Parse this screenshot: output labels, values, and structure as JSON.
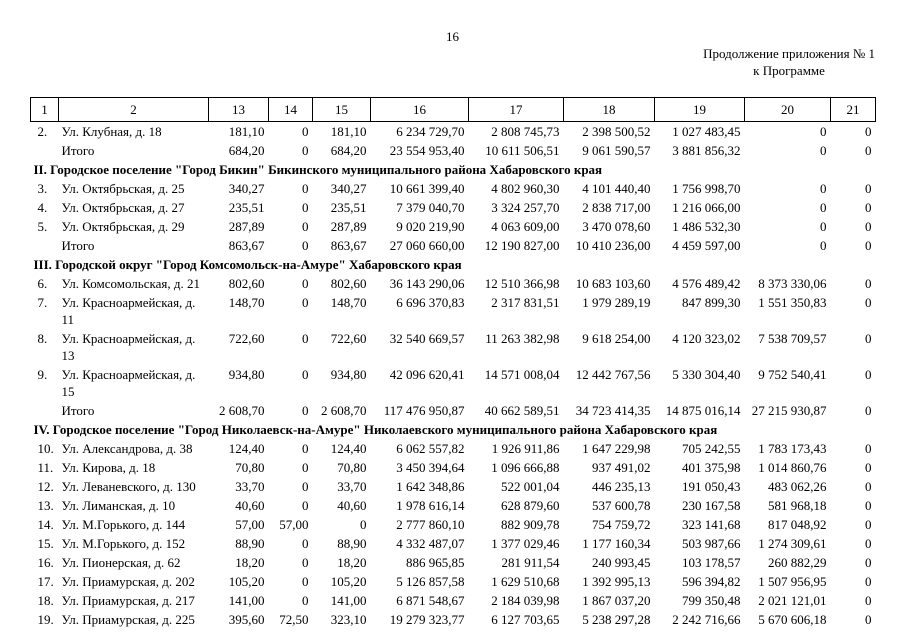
{
  "page": {
    "number": "16",
    "continuation_line1": "Продолжение приложения № 1",
    "continuation_line2": "к Программе"
  },
  "table": {
    "header": [
      "1",
      "2",
      "13",
      "14",
      "15",
      "16",
      "17",
      "18",
      "19",
      "20",
      "21"
    ],
    "rows": [
      {
        "type": "item",
        "num": "2.",
        "address": "Ул. Клубная, д. 18",
        "values": [
          "181,10",
          "0",
          "181,10",
          "6 234 729,70",
          "2 808 745,73",
          "2 398 500,52",
          "1 027 483,45",
          "0",
          "0"
        ]
      },
      {
        "type": "total",
        "label": "Итого",
        "values": [
          "684,20",
          "0",
          "684,20",
          "23 554 953,40",
          "10 611 506,51",
          "9 061 590,57",
          "3 881 856,32",
          "0",
          "0"
        ]
      },
      {
        "type": "section",
        "text": "II. Городское поселение \"Город Бикин\" Бикинского муниципального района Хабаровского края"
      },
      {
        "type": "item",
        "num": "3.",
        "address": "Ул. Октябрьская, д. 25",
        "values": [
          "340,27",
          "0",
          "340,27",
          "10 661 399,40",
          "4 802 960,30",
          "4 101 440,40",
          "1 756 998,70",
          "0",
          "0"
        ]
      },
      {
        "type": "item",
        "num": "4.",
        "address": "Ул. Октябрьская, д. 27",
        "values": [
          "235,51",
          "0",
          "235,51",
          "7 379 040,70",
          "3 324 257,70",
          "2 838 717,00",
          "1 216 066,00",
          "0",
          "0"
        ]
      },
      {
        "type": "item",
        "num": "5.",
        "address": "Ул. Октябрьская, д. 29",
        "values": [
          "287,89",
          "0",
          "287,89",
          "9 020 219,90",
          "4 063 609,00",
          "3 470 078,60",
          "1 486 532,30",
          "0",
          "0"
        ]
      },
      {
        "type": "total",
        "label": "Итого",
        "values": [
          "863,67",
          "0",
          "863,67",
          "27 060 660,00",
          "12 190 827,00",
          "10 410 236,00",
          "4 459 597,00",
          "0",
          "0"
        ]
      },
      {
        "type": "section",
        "text": "III. Городской округ \"Город Комсомольск-на-Амуре\" Хабаровского края"
      },
      {
        "type": "item",
        "num": "6.",
        "address": "Ул. Комсомольская, д. 21",
        "values": [
          "802,60",
          "0",
          "802,60",
          "36 143 290,06",
          "12 510 366,98",
          "10 683 103,60",
          "4 576 489,42",
          "8 373 330,06",
          "0"
        ]
      },
      {
        "type": "item",
        "num": "7.",
        "address": "Ул. Красноармейская, д. 11",
        "values": [
          "148,70",
          "0",
          "148,70",
          "6 696 370,83",
          "2 317 831,51",
          "1 979 289,19",
          "847 899,30",
          "1 551 350,83",
          "0"
        ]
      },
      {
        "type": "item",
        "num": "8.",
        "address": "Ул. Красноармейская, д. 13",
        "values": [
          "722,60",
          "0",
          "722,60",
          "32 540 669,57",
          "11 263 382,98",
          "9 618 254,00",
          "4 120 323,02",
          "7 538 709,57",
          "0"
        ]
      },
      {
        "type": "item",
        "num": "9.",
        "address": "Ул. Красноармейская, д. 15",
        "values": [
          "934,80",
          "0",
          "934,80",
          "42 096 620,41",
          "14 571 008,04",
          "12 442 767,56",
          "5 330 304,40",
          "9 752 540,41",
          "0"
        ]
      },
      {
        "type": "total",
        "label": "Итого",
        "values": [
          "2 608,70",
          "0",
          "2 608,70",
          "117 476 950,87",
          "40 662 589,51",
          "34 723 414,35",
          "14 875 016,14",
          "27 215 930,87",
          "0"
        ]
      },
      {
        "type": "section",
        "text": "IV. Городское поселение \"Город Николаевск-на-Амуре\" Николаевского муниципального района Хабаровского края"
      },
      {
        "type": "item",
        "num": "10.",
        "address": "Ул. Александрова, д. 38",
        "values": [
          "124,40",
          "0",
          "124,40",
          "6 062 557,82",
          "1 926 911,86",
          "1 647 229,98",
          "705 242,55",
          "1 783 173,43",
          "0"
        ]
      },
      {
        "type": "item",
        "num": "11.",
        "address": "Ул. Кирова, д. 18",
        "values": [
          "70,80",
          "0",
          "70,80",
          "3 450 394,64",
          "1 096 666,88",
          "937 491,02",
          "401 375,98",
          "1 014 860,76",
          "0"
        ]
      },
      {
        "type": "item",
        "num": "12.",
        "address": "Ул. Леваневского, д. 130",
        "values": [
          "33,70",
          "0",
          "33,70",
          "1 642 348,86",
          "522 001,04",
          "446 235,13",
          "191 050,43",
          "483 062,26",
          "0"
        ]
      },
      {
        "type": "item",
        "num": "13.",
        "address": "Ул. Лиманская, д. 10",
        "values": [
          "40,60",
          "0",
          "40,60",
          "1 978 616,14",
          "628 879,60",
          "537 600,78",
          "230 167,58",
          "581 968,18",
          "0"
        ]
      },
      {
        "type": "item",
        "num": "14.",
        "address": "Ул. М.Горького, д. 144",
        "values": [
          "57,00",
          "57,00",
          "0",
          "2 777 860,10",
          "882 909,78",
          "754 759,72",
          "323 141,68",
          "817 048,92",
          "0"
        ]
      },
      {
        "type": "item",
        "num": "15.",
        "address": "Ул. М.Горького, д. 152",
        "values": [
          "88,90",
          "0",
          "88,90",
          "4 332 487,07",
          "1 377 029,46",
          "1 177 160,34",
          "503 987,66",
          "1 274 309,61",
          "0"
        ]
      },
      {
        "type": "item",
        "num": "16.",
        "address": "Ул. Пионерская, д. 62",
        "values": [
          "18,20",
          "0",
          "18,20",
          "886 965,85",
          "281 911,54",
          "240 993,45",
          "103 178,57",
          "260 882,29",
          "0"
        ]
      },
      {
        "type": "item",
        "num": "17.",
        "address": "Ул. Приамурская, д. 202",
        "values": [
          "105,20",
          "0",
          "105,20",
          "5 126 857,58",
          "1 629 510,68",
          "1 392 995,13",
          "596 394,82",
          "1 507 956,95",
          "0"
        ]
      },
      {
        "type": "item",
        "num": "18.",
        "address": "Ул. Приамурская, д. 217",
        "values": [
          "141,00",
          "0",
          "141,00",
          "6 871 548,67",
          "2 184 039,98",
          "1 867 037,20",
          "799 350,48",
          "2 021 121,01",
          "0"
        ]
      },
      {
        "type": "item",
        "num": "19.",
        "address": "Ул. Приамурская, д. 225",
        "values": [
          "395,60",
          "72,50",
          "323,10",
          "19 279 323,77",
          "6 127 703,65",
          "5 238 297,28",
          "2 242 716,66",
          "5 670 606,18",
          "0"
        ]
      }
    ]
  }
}
